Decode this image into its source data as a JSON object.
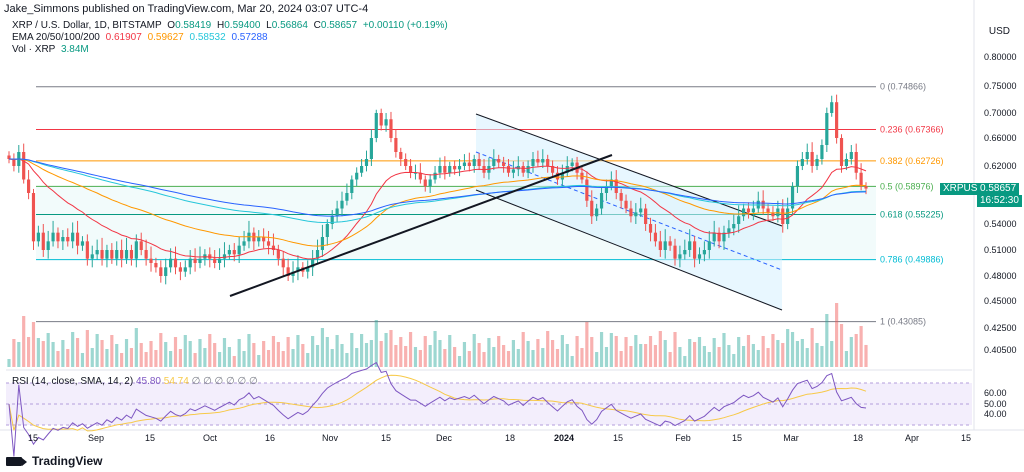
{
  "header": {
    "published": "Jake_Simmons published on TradingView.com, Mar 20, 2024 03:07 UTC-4"
  },
  "legend": {
    "symbol_line": "XRP / U.S. Dollar, 1D, BITSTAMP",
    "ohlc": {
      "o_label": "O",
      "o": "0.58419",
      "h_label": "H",
      "h": "0.59400",
      "l_label": "L",
      "l": "0.56864",
      "c_label": "C",
      "c": "0.58657",
      "change": "+0.00110 (+0.19%)"
    },
    "ema_label": "EMA 20/50/100/200",
    "ema_values": [
      "0.61907",
      "0.59627",
      "0.58532",
      "0.57288"
    ],
    "ema_colors": [
      "#f23645",
      "#ff9800",
      "#26c6da",
      "#2962ff"
    ],
    "vol_label": "Vol · XRP",
    "vol_value": "3.84M"
  },
  "rsi_legend": {
    "label": "RSI (14, close, SMA, 14, 2)",
    "value1": "45.80",
    "value2": "54.74",
    "empty": "∅ ∅ ∅ ∅ ∅ ∅"
  },
  "price_axis": {
    "currency": "USD"
  },
  "current_price_tag": {
    "symbol": "XRPUSD",
    "price": "0.58657",
    "countdown": "16:52:30"
  },
  "footer": {
    "brand": "TradingView"
  },
  "colors": {
    "up": "#26a69a",
    "down": "#ef5350",
    "rsi": "#7e57c2",
    "rsi_ma": "#f7c948",
    "fib_band": "#e0f7fa"
  },
  "chart_data": {
    "type": "candlestick",
    "pair": "XRP/USD",
    "timeframe": "1D",
    "price_ticks": [
      "0.80000",
      "0.75000",
      "0.70000",
      "0.66000",
      "0.62000",
      "0.58000",
      "0.54000",
      "0.51000",
      "0.48000",
      "0.45000",
      "0.42500",
      "0.40500"
    ],
    "rsi_ticks": [
      "60.00",
      "50.00",
      "40.00"
    ],
    "x_ticks": [
      "15",
      "Sep",
      "15",
      "Oct",
      "16",
      "Nov",
      "15",
      "Dec",
      "18",
      "2024",
      "15",
      "Feb",
      "15",
      "Mar",
      "18",
      "Apr",
      "15"
    ],
    "fib_levels": [
      {
        "label": "0 (0.74866)",
        "value": 0.74866,
        "color": "#787b86"
      },
      {
        "label": "0.236 (0.67366)",
        "value": 0.67366,
        "color": "#f23645"
      },
      {
        "label": "0.382 (0.62726)",
        "value": 0.62726,
        "color": "#ff9800"
      },
      {
        "label": "0.5 (0.58976)",
        "value": 0.58976,
        "color": "#4caf50"
      },
      {
        "label": "0.618 (0.55225)",
        "value": 0.55225,
        "color": "#089981"
      },
      {
        "label": "0.786 (0.49886)",
        "value": 0.49886,
        "color": "#00bcd4"
      },
      {
        "label": "1 (0.43085)",
        "value": 0.43085,
        "color": "#787b86"
      }
    ],
    "closes": [
      0.63,
      0.62,
      0.64,
      0.6,
      0.58,
      0.52,
      0.53,
      0.51,
      0.52,
      0.53,
      0.52,
      0.525,
      0.52,
      0.53,
      0.515,
      0.52,
      0.5,
      0.505,
      0.51,
      0.5,
      0.51,
      0.5,
      0.51,
      0.5,
      0.51,
      0.5,
      0.52,
      0.51,
      0.5,
      0.495,
      0.49,
      0.48,
      0.49,
      0.5,
      0.49,
      0.485,
      0.49,
      0.5,
      0.495,
      0.5,
      0.505,
      0.5,
      0.495,
      0.5,
      0.505,
      0.51,
      0.505,
      0.515,
      0.52,
      0.53,
      0.52,
      0.525,
      0.52,
      0.515,
      0.51,
      0.5,
      0.49,
      0.48,
      0.485,
      0.49,
      0.485,
      0.49,
      0.5,
      0.51,
      0.525,
      0.54,
      0.55,
      0.56,
      0.57,
      0.58,
      0.6,
      0.61,
      0.62,
      0.63,
      0.66,
      0.7,
      0.68,
      0.69,
      0.66,
      0.64,
      0.63,
      0.62,
      0.61,
      0.61,
      0.6,
      0.59,
      0.6,
      0.61,
      0.62,
      0.61,
      0.62,
      0.615,
      0.62,
      0.625,
      0.62,
      0.63,
      0.62,
      0.61,
      0.62,
      0.63,
      0.625,
      0.62,
      0.61,
      0.615,
      0.62,
      0.61,
      0.62,
      0.63,
      0.625,
      0.63,
      0.62,
      0.61,
      0.6,
      0.61,
      0.62,
      0.625,
      0.61,
      0.6,
      0.57,
      0.55,
      0.56,
      0.58,
      0.59,
      0.6,
      0.58,
      0.57,
      0.56,
      0.55,
      0.555,
      0.56,
      0.54,
      0.53,
      0.52,
      0.51,
      0.52,
      0.515,
      0.5,
      0.505,
      0.51,
      0.52,
      0.5,
      0.505,
      0.51,
      0.52,
      0.53,
      0.52,
      0.53,
      0.535,
      0.54,
      0.55,
      0.56,
      0.555,
      0.56,
      0.57,
      0.56,
      0.555,
      0.55,
      0.56,
      0.54,
      0.56,
      0.59,
      0.62,
      0.63,
      0.64,
      0.62,
      0.63,
      0.65,
      0.7,
      0.72,
      0.66,
      0.62,
      0.63,
      0.64,
      0.61,
      0.59,
      0.5866
    ]
  }
}
